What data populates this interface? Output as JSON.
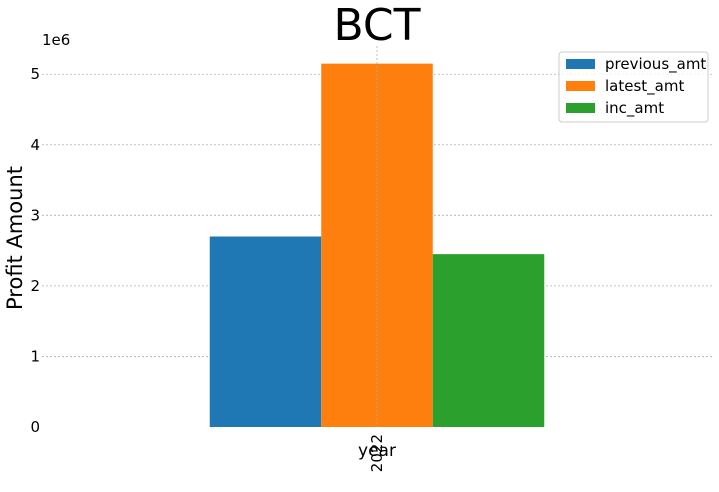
{
  "chart_data": {
    "type": "bar",
    "title": "BCT",
    "xlabel": "year",
    "ylabel": "Profit Amount",
    "categories": [
      "2022"
    ],
    "series": [
      {
        "name": "previous_amt",
        "values": [
          2700000
        ],
        "color": "#1f77b4"
      },
      {
        "name": "latest_amt",
        "values": [
          5150000
        ],
        "color": "#ff7f0e"
      },
      {
        "name": "inc_amt",
        "values": [
          2450000
        ],
        "color": "#2ca02c"
      }
    ],
    "ylim": [
      0,
      5400000
    ],
    "yticks": [
      0,
      1,
      2,
      3,
      4,
      5
    ],
    "yticks_scale": 1000000,
    "y_offset_label": "1e6",
    "grid": true,
    "legend_position": "top-right"
  }
}
